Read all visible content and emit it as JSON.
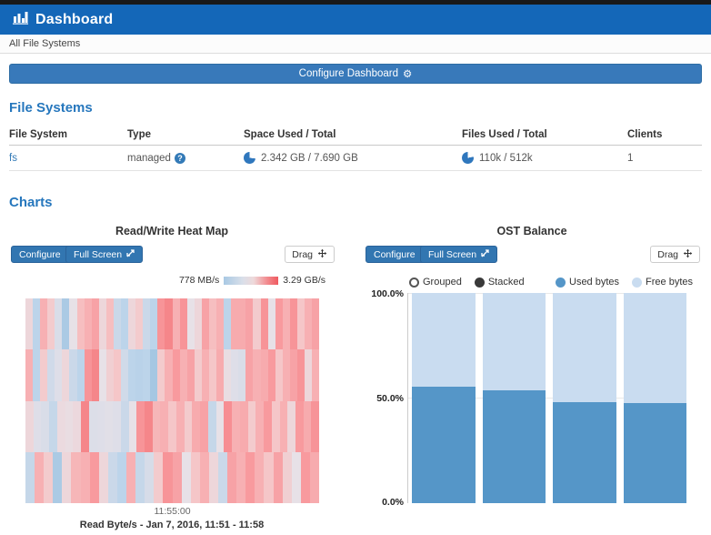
{
  "header": {
    "title": "Dashboard"
  },
  "breadcrumb": {
    "label": "All File Systems"
  },
  "configure_dashboard": {
    "label": "Configure Dashboard"
  },
  "file_systems": {
    "heading": "File Systems",
    "columns": [
      "File System",
      "Type",
      "Space Used / Total",
      "Files Used / Total",
      "Clients"
    ],
    "rows": [
      {
        "name": "fs",
        "type": "managed",
        "space": "2.342 GB / 7.690 GB",
        "files": "110k / 512k",
        "clients": "1"
      }
    ]
  },
  "charts": {
    "heading": "Charts",
    "heatmap": {
      "title": "Read/Write Heat Map",
      "configure_label": "Configure",
      "fullscreen_label": "Full Screen",
      "drag_label": "Drag",
      "legend_min": "778 MB/s",
      "legend_max": "3.29 GB/s",
      "x_tick": "11:55:00",
      "caption": "Read Byte/s - Jan 7, 2016, 11:51 - 11:58"
    },
    "ost_balance": {
      "title": "OST Balance",
      "configure_label": "Configure",
      "fullscreen_label": "Full Screen",
      "drag_label": "Drag",
      "mode_grouped": "Grouped",
      "mode_stacked": "Stacked",
      "legend_used": "Used bytes",
      "legend_free": "Free bytes",
      "y_tick_top": "100.0%",
      "y_tick_mid": "50.0%",
      "y_tick_bottom": "0.0%"
    }
  },
  "colors": {
    "header_blue": "#1467b8",
    "button_blue": "#3276b1",
    "used_bytes": "#5596c8",
    "free_bytes": "#c9dcf0",
    "heat_min": "#7fb0d5",
    "heat_max": "#f05a60"
  },
  "chart_data": [
    {
      "type": "heatmap",
      "title": "Read/Write Heat Map",
      "value_scale": {
        "min_label": "778 MB/s",
        "max_label": "3.29 GB/s"
      },
      "x_tick": "11:55:00",
      "caption": "Read Byte/s - Jan 7, 2016, 11:51 - 11:58",
      "rows": [
        [
          0.55,
          0.35,
          0.7,
          0.6,
          0.45,
          0.25,
          0.5,
          0.65,
          0.7,
          0.75,
          0.55,
          0.65,
          0.4,
          0.35,
          0.55,
          0.6,
          0.4,
          0.35,
          0.8,
          0.85,
          0.7,
          0.8,
          0.5,
          0.55,
          0.75,
          0.65,
          0.7,
          0.35,
          0.72,
          0.72,
          0.75,
          0.6,
          0.8,
          0.5,
          0.78,
          0.7,
          0.8,
          0.62,
          0.7,
          0.75
        ],
        [
          0.7,
          0.35,
          0.6,
          0.42,
          0.47,
          0.55,
          0.4,
          0.35,
          0.8,
          0.85,
          0.5,
          0.58,
          0.62,
          0.42,
          0.35,
          0.33,
          0.35,
          0.22,
          0.6,
          0.7,
          0.78,
          0.7,
          0.75,
          0.6,
          0.7,
          0.62,
          0.72,
          0.52,
          0.47,
          0.45,
          0.75,
          0.7,
          0.72,
          0.78,
          0.62,
          0.7,
          0.75,
          0.8,
          0.55,
          0.7
        ],
        [
          0.55,
          0.47,
          0.45,
          0.38,
          0.53,
          0.52,
          0.54,
          0.85,
          0.46,
          0.47,
          0.48,
          0.47,
          0.4,
          0.5,
          0.8,
          0.85,
          0.68,
          0.7,
          0.62,
          0.7,
          0.6,
          0.72,
          0.75,
          0.38,
          0.5,
          0.82,
          0.7,
          0.72,
          0.6,
          0.7,
          0.78,
          0.62,
          0.7,
          0.55,
          0.78,
          0.72,
          0.8
        ],
        [
          0.38,
          0.7,
          0.6,
          0.25,
          0.55,
          0.68,
          0.7,
          0.78,
          0.55,
          0.4,
          0.35,
          0.7,
          0.38,
          0.44,
          0.6,
          0.8,
          0.75,
          0.5,
          0.62,
          0.7,
          0.55,
          0.4,
          0.75,
          0.7,
          0.78,
          0.7,
          0.62,
          0.75,
          0.58,
          0.5,
          0.78,
          0.72
        ]
      ]
    },
    {
      "type": "bar",
      "title": "OST Balance",
      "stacked": true,
      "categories": [
        "",
        "",
        "",
        ""
      ],
      "series": [
        {
          "name": "Used bytes",
          "values": [
            55.5,
            53.8,
            48.0,
            47.5
          ]
        },
        {
          "name": "Free bytes",
          "values": [
            44.5,
            46.2,
            52.0,
            52.5
          ]
        }
      ],
      "ylim": [
        0,
        100
      ],
      "y_ticks": [
        "100.0%",
        "50.0%",
        "0.0%"
      ],
      "legend_position": "top"
    }
  ]
}
